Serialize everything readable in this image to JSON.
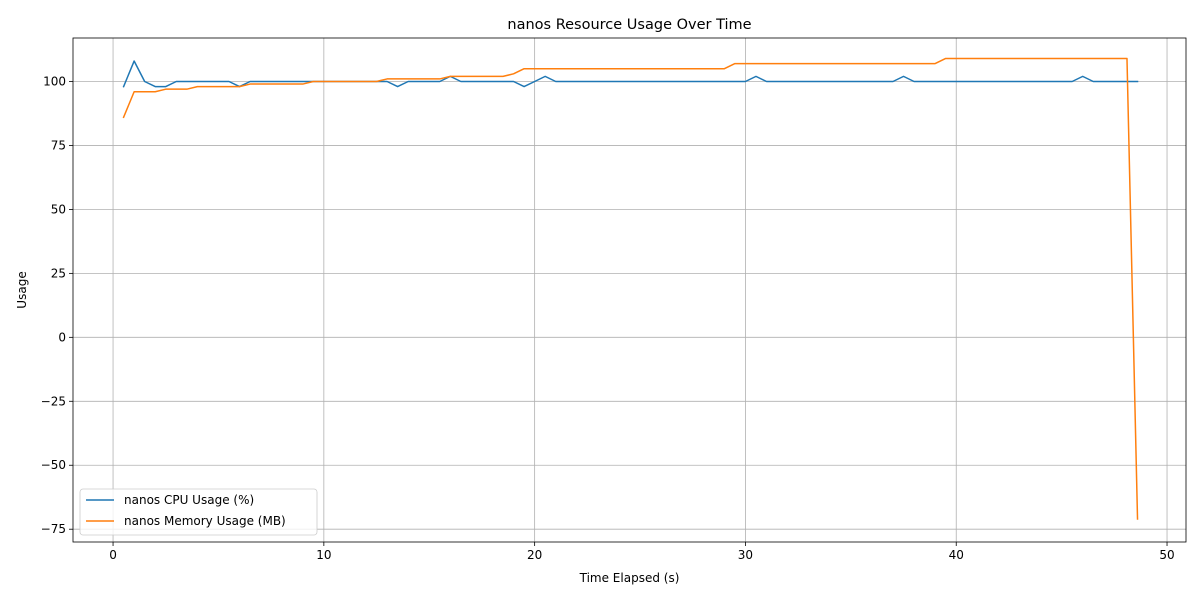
{
  "chart_data": {
    "type": "line",
    "title": "nanos Resource Usage Over Time",
    "xlabel": "Time Elapsed (s)",
    "ylabel": "Usage",
    "xlim": [
      -1.9,
      50.9
    ],
    "ylim": [
      -80,
      117
    ],
    "xticks": [
      0,
      10,
      20,
      30,
      40,
      50
    ],
    "yticks": [
      -75,
      -50,
      -25,
      0,
      25,
      50,
      75,
      100
    ],
    "xtick_labels": [
      "0",
      "10",
      "20",
      "30",
      "40",
      "50"
    ],
    "ytick_labels": [
      "−75",
      "−50",
      "−25",
      "0",
      "25",
      "50",
      "75",
      "100"
    ],
    "grid": true,
    "legend_position": "lower-left",
    "series": [
      {
        "name": "nanos CPU Usage (%)",
        "color": "#1f77b4",
        "points": [
          [
            0.5,
            98
          ],
          [
            1.0,
            108
          ],
          [
            1.5,
            100
          ],
          [
            2.0,
            98
          ],
          [
            2.5,
            98
          ],
          [
            3.0,
            100
          ],
          [
            3.5,
            100
          ],
          [
            4.0,
            100
          ],
          [
            4.5,
            100
          ],
          [
            5.0,
            100
          ],
          [
            5.5,
            100
          ],
          [
            6.0,
            98
          ],
          [
            6.5,
            100
          ],
          [
            7.0,
            100
          ],
          [
            9.0,
            100
          ],
          [
            10.0,
            100
          ],
          [
            12.5,
            100
          ],
          [
            13.0,
            100
          ],
          [
            13.5,
            98
          ],
          [
            14.0,
            100
          ],
          [
            15.5,
            100
          ],
          [
            16.0,
            102
          ],
          [
            16.5,
            100
          ],
          [
            17.0,
            100
          ],
          [
            19.0,
            100
          ],
          [
            19.5,
            98
          ],
          [
            20.0,
            100
          ],
          [
            20.5,
            102
          ],
          [
            21.0,
            100
          ],
          [
            22.0,
            100
          ],
          [
            30.0,
            100
          ],
          [
            30.5,
            102
          ],
          [
            31.0,
            100
          ],
          [
            37.0,
            100
          ],
          [
            37.5,
            102
          ],
          [
            38.0,
            100
          ],
          [
            45.5,
            100
          ],
          [
            46.0,
            102
          ],
          [
            46.5,
            100
          ],
          [
            48.6,
            100
          ]
        ]
      },
      {
        "name": "nanos Memory Usage (MB)",
        "color": "#ff7f0e",
        "points": [
          [
            0.5,
            86
          ],
          [
            1.0,
            96
          ],
          [
            2.0,
            96
          ],
          [
            2.5,
            97
          ],
          [
            3.5,
            97
          ],
          [
            4.0,
            98
          ],
          [
            5.5,
            98
          ],
          [
            6.0,
            98
          ],
          [
            6.5,
            99
          ],
          [
            9.0,
            99
          ],
          [
            9.5,
            100
          ],
          [
            12.5,
            100
          ],
          [
            13.0,
            101
          ],
          [
            15.5,
            101
          ],
          [
            16.0,
            102
          ],
          [
            18.5,
            102
          ],
          [
            19.0,
            103
          ],
          [
            19.5,
            105
          ],
          [
            29.0,
            105
          ],
          [
            29.5,
            107
          ],
          [
            39.0,
            107
          ],
          [
            39.5,
            109
          ],
          [
            48.1,
            109
          ],
          [
            48.6,
            -71
          ]
        ]
      }
    ]
  }
}
